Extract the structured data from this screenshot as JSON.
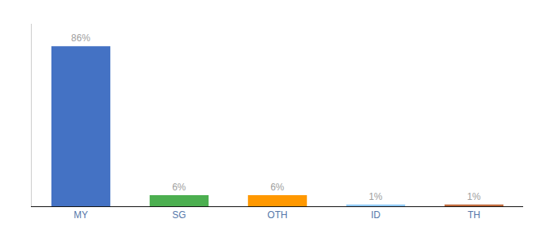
{
  "chart_data": {
    "type": "bar",
    "categories": [
      "MY",
      "SG",
      "OTH",
      "ID",
      "TH"
    ],
    "values": [
      86,
      6,
      6,
      1,
      1
    ],
    "value_labels": [
      "86%",
      "6%",
      "6%",
      "1%",
      "1%"
    ],
    "colors": [
      "#4472c4",
      "#4caf50",
      "#ff9800",
      "#90caf9",
      "#c0693a"
    ],
    "ylim": [
      0,
      98
    ],
    "grid": false,
    "data_labels": true,
    "tick_labels": "x"
  }
}
